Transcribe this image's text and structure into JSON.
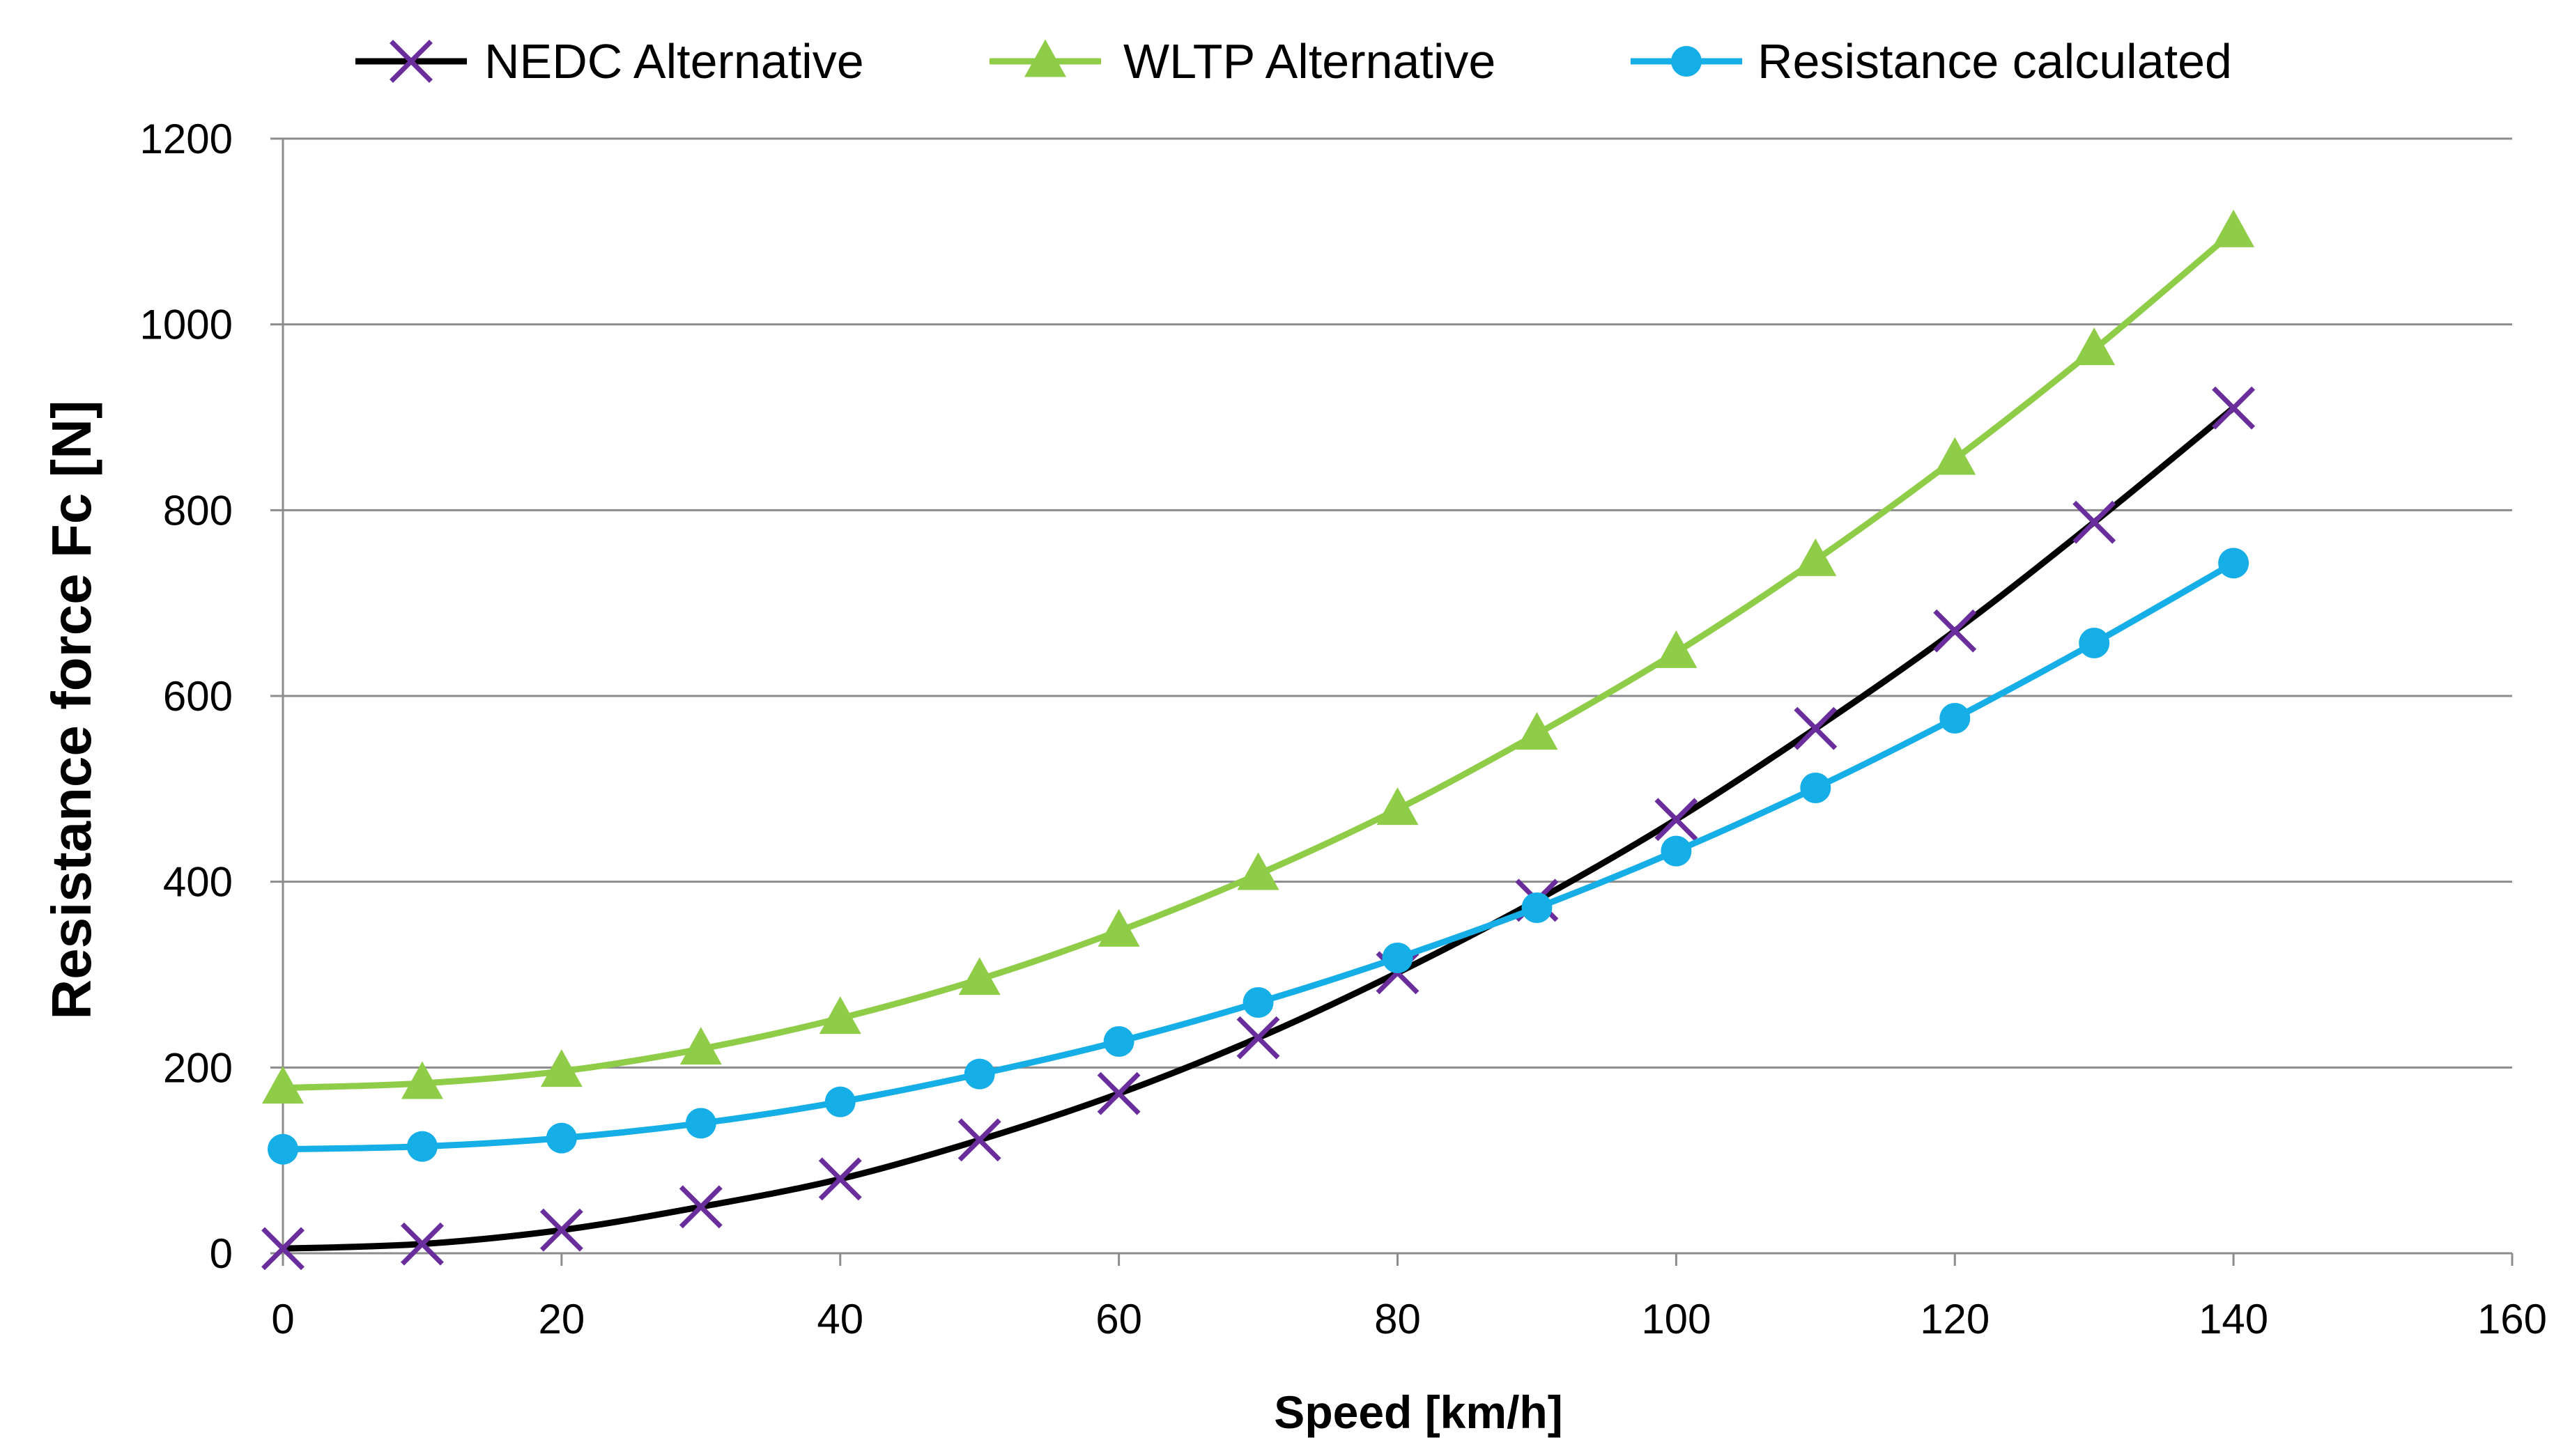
{
  "chart_data": {
    "type": "line",
    "title": "",
    "xlabel": "Speed  [km/h]",
    "ylabel": "Resistance force Fc  [N]",
    "xlim": [
      0,
      160
    ],
    "ylim": [
      0,
      1200
    ],
    "xticks": [
      0,
      20,
      40,
      60,
      80,
      100,
      120,
      140,
      160
    ],
    "yticks": [
      0,
      200,
      400,
      600,
      800,
      1000,
      1200
    ],
    "grid": "horizontal",
    "legend_position": "top",
    "x": [
      0,
      10,
      20,
      30,
      40,
      50,
      60,
      70,
      80,
      90,
      100,
      110,
      120,
      130,
      140
    ],
    "series": [
      {
        "name": "NEDC Alternative",
        "line_color": "#000000",
        "marker": "x",
        "marker_color": "#6a2e9c",
        "values": [
          5,
          10,
          25,
          50,
          80,
          122,
          172,
          232,
          302,
          380,
          467,
          565,
          670,
          787,
          910
        ]
      },
      {
        "name": "WLTP Alternative",
        "line_color": "#8fcc48",
        "marker": "triangle",
        "marker_color": "#8fcc48",
        "values": [
          178,
          183,
          196,
          220,
          253,
          295,
          347,
          408,
          478,
          559,
          647,
          746,
          855,
          973,
          1100
        ]
      },
      {
        "name": "Resistance calculated",
        "line_color": "#16aee6",
        "marker": "circle",
        "marker_color": "#16aee6",
        "values": [
          112,
          115,
          124,
          140,
          163,
          193,
          228,
          270,
          318,
          372,
          433,
          501,
          576,
          657,
          743
        ]
      }
    ]
  }
}
